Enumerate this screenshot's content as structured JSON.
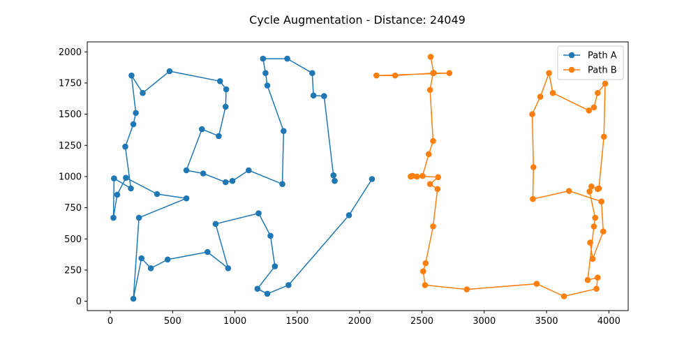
{
  "chart_data": {
    "type": "line",
    "title": "Cycle Augmentation - Distance: 24049",
    "xlabel": "",
    "ylabel": "",
    "xlim": [
      -185,
      4155
    ],
    "ylim": [
      -75,
      2080
    ],
    "xticks": [
      0,
      500,
      1000,
      1500,
      2000,
      2500,
      3000,
      3500,
      4000
    ],
    "yticks": [
      0,
      250,
      500,
      750,
      1000,
      1250,
      1500,
      1750,
      2000
    ],
    "grid": false,
    "legend_position": "top-right",
    "series": [
      {
        "name": "Path A",
        "color": "#1f77b4",
        "marker": "circle",
        "x": [
          2100,
          1915,
          1430,
          1260,
          1180,
          1320,
          1285,
          1190,
          845,
          945,
          780,
          460,
          325,
          250,
          185,
          230,
          610,
          375,
          125,
          55,
          25,
          30,
          165,
          120,
          185,
          205,
          170,
          260,
          475,
          880,
          930,
          925,
          870,
          735,
          610,
          745,
          925,
          980,
          1110,
          1380,
          1390,
          1260,
          1245,
          1225,
          1420,
          1620,
          1630,
          1715,
          1790,
          1800
        ],
        "y": [
          980,
          690,
          130,
          60,
          100,
          280,
          525,
          705,
          620,
          265,
          395,
          335,
          265,
          345,
          20,
          670,
          825,
          860,
          990,
          855,
          670,
          985,
          905,
          1240,
          1420,
          1510,
          1810,
          1670,
          1845,
          1765,
          1700,
          1560,
          1325,
          1380,
          1050,
          1025,
          955,
          965,
          1050,
          940,
          1365,
          1730,
          1830,
          1945,
          1945,
          1830,
          1650,
          1645,
          1010,
          965
        ]
      },
      {
        "name": "Path B",
        "color": "#ff7f0e",
        "marker": "circle",
        "x": [
          2570,
          2595,
          2720,
          2135,
          2285,
          2590,
          2565,
          2590,
          2555,
          2505,
          2420,
          2460,
          2410,
          2425,
          2630,
          2565,
          2625,
          2590,
          2530,
          2510,
          2525,
          2860,
          3420,
          3640,
          3900,
          3910,
          3830,
          3880,
          3890,
          3845,
          3860,
          3910,
          3920,
          3960,
          3970,
          3910,
          3880,
          3840,
          3550,
          3520,
          3450,
          3385,
          3395,
          3390,
          3680,
          3940,
          3955,
          3870,
          3850
        ],
        "y": [
          1960,
          1830,
          1830,
          1810,
          1810,
          1830,
          1695,
          1285,
          1180,
          1005,
          1005,
          1000,
          1000,
          1005,
          995,
          940,
          900,
          600,
          305,
          240,
          130,
          95,
          140,
          40,
          100,
          190,
          170,
          600,
          670,
          880,
          920,
          900,
          905,
          1320,
          1745,
          1670,
          1555,
          1530,
          1670,
          1830,
          1640,
          1500,
          1075,
          820,
          885,
          800,
          560,
          340,
          470
        ]
      }
    ]
  }
}
